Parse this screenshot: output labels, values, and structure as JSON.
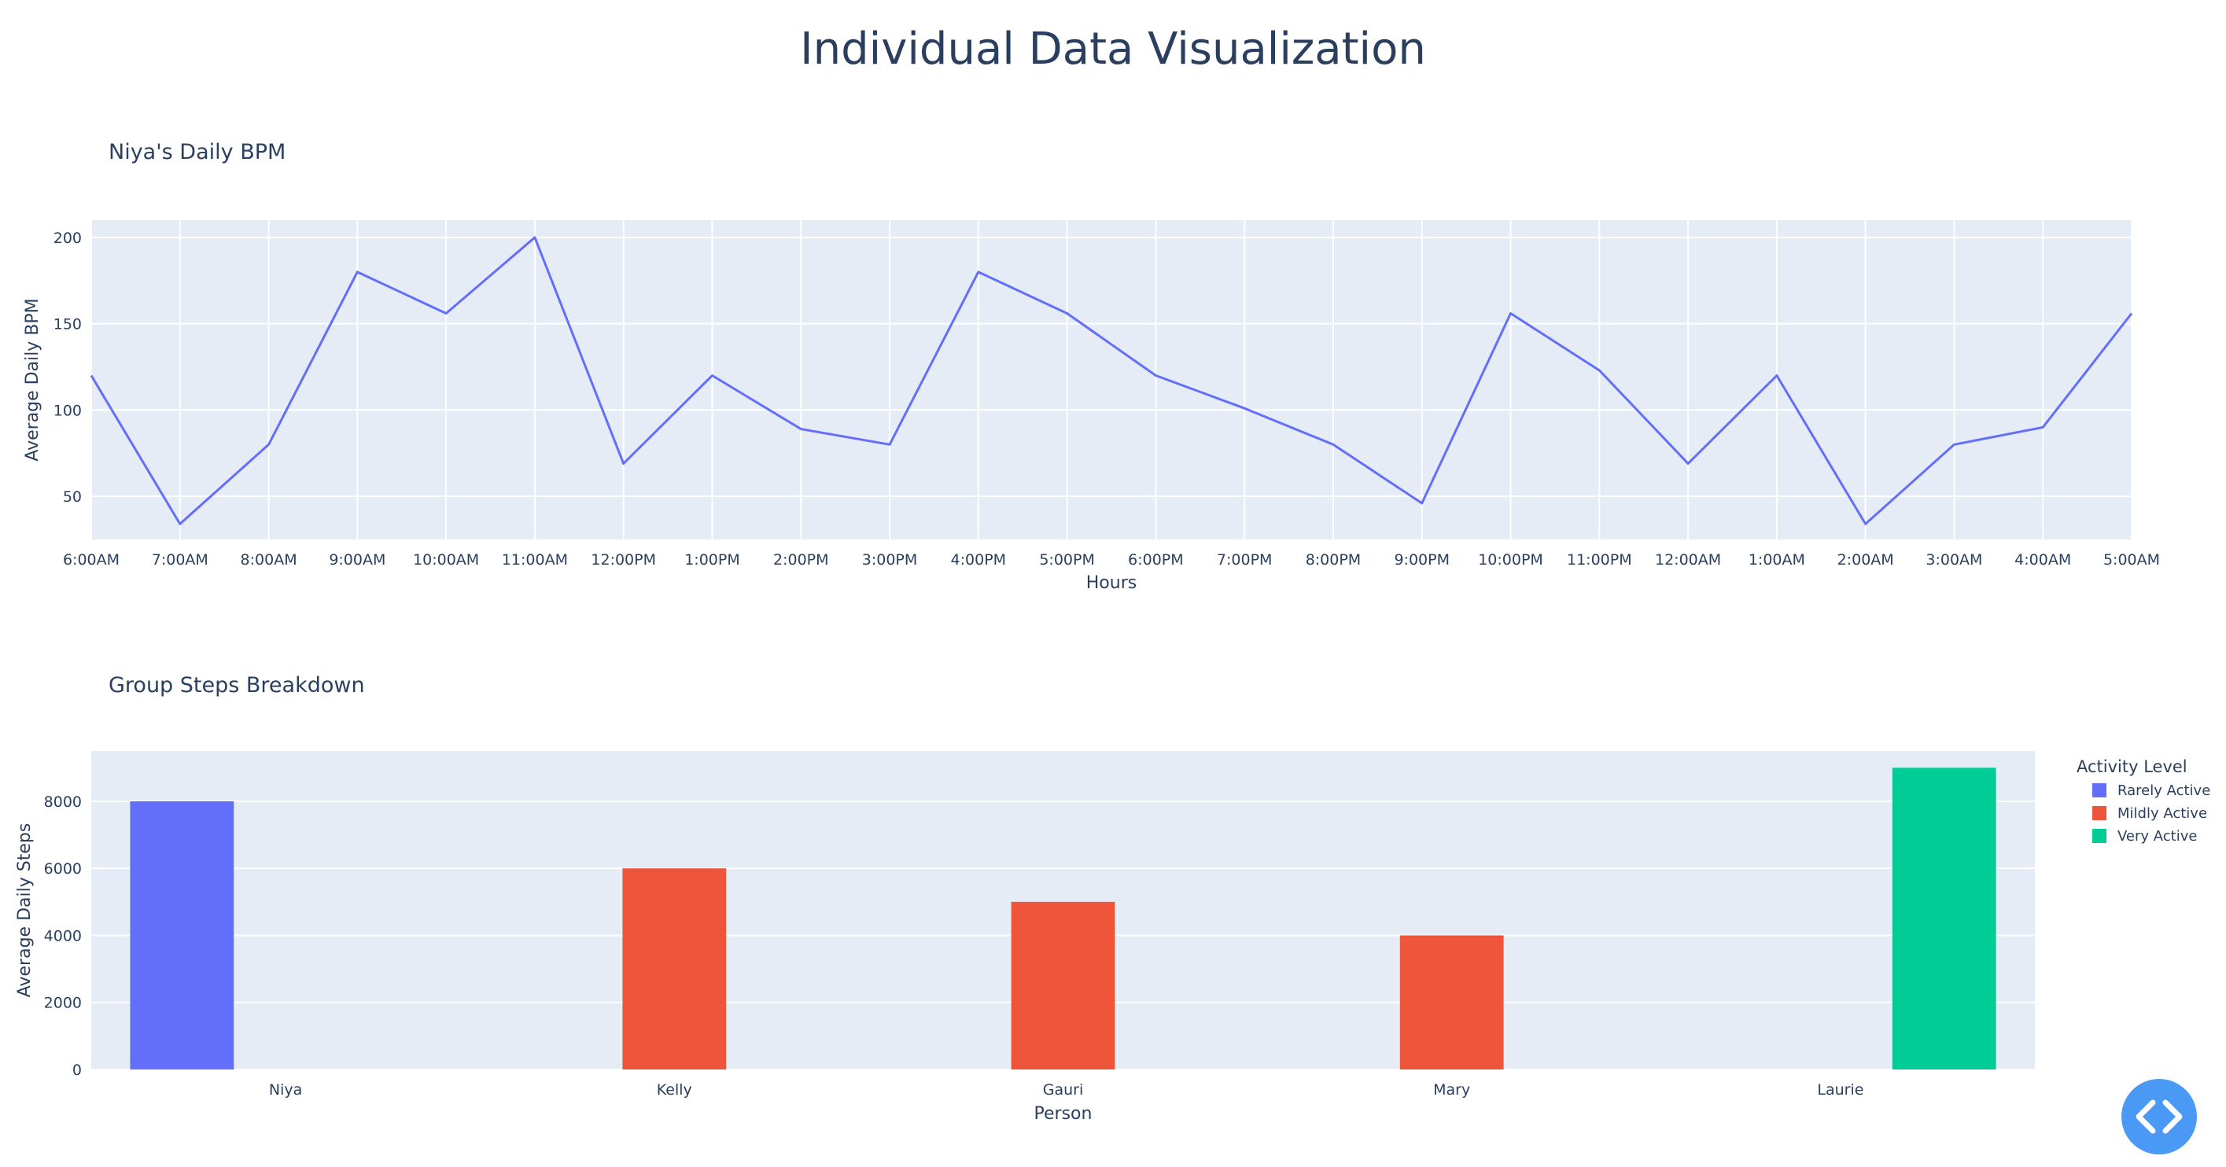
{
  "page": {
    "title": "Individual Data Visualization"
  },
  "chart_data": [
    {
      "type": "line",
      "title": "Niya's Daily BPM",
      "xlabel": "Hours",
      "ylabel": "Average Daily BPM",
      "x": [
        "6:00AM",
        "7:00AM",
        "8:00AM",
        "9:00AM",
        "10:00AM",
        "11:00AM",
        "12:00PM",
        "1:00PM",
        "2:00PM",
        "3:00PM",
        "4:00PM",
        "5:00PM",
        "6:00PM",
        "7:00PM",
        "8:00PM",
        "9:00PM",
        "10:00PM",
        "11:00PM",
        "12:00AM",
        "1:00AM",
        "2:00AM",
        "3:00AM",
        "4:00AM",
        "5:00AM"
      ],
      "series": [
        {
          "values": [
            120,
            34,
            80,
            180,
            156,
            200,
            69,
            120,
            89,
            80,
            180,
            156,
            120,
            101,
            80,
            46,
            156,
            123,
            69,
            120,
            34,
            80,
            90,
            156
          ],
          "color": "#636efa"
        }
      ],
      "ylim": [
        25,
        210
      ],
      "yticks": [
        50,
        100,
        150,
        200
      ],
      "grid": true
    },
    {
      "type": "bar",
      "title": "Group Steps Breakdown",
      "xlabel": "Person",
      "ylabel": "Average Daily Steps",
      "categories": [
        "Niya",
        "Kelly",
        "Gauri",
        "Mary",
        "Laurie"
      ],
      "series": [
        {
          "name": "Rarely Active",
          "color": "#636efa",
          "values": [
            8000,
            null,
            null,
            null,
            null
          ]
        },
        {
          "name": "Mildly Active",
          "color": "#ef553b",
          "values": [
            null,
            6000,
            5000,
            4000,
            null
          ]
        },
        {
          "name": "Very Active",
          "color": "#00cc96",
          "values": [
            null,
            null,
            null,
            null,
            9000
          ]
        }
      ],
      "ylim": [
        0,
        9500
      ],
      "yticks": [
        0,
        2000,
        4000,
        6000,
        8000
      ],
      "legend": {
        "title": "Activity Level",
        "position": "top-right"
      },
      "grid": true
    }
  ],
  "colors": {
    "plot_bg": "#e5ecf6",
    "text": "#2a3f5f",
    "grid": "#ffffff",
    "button": "#4a9af5"
  },
  "code_button": {
    "icon": "code-icon"
  }
}
